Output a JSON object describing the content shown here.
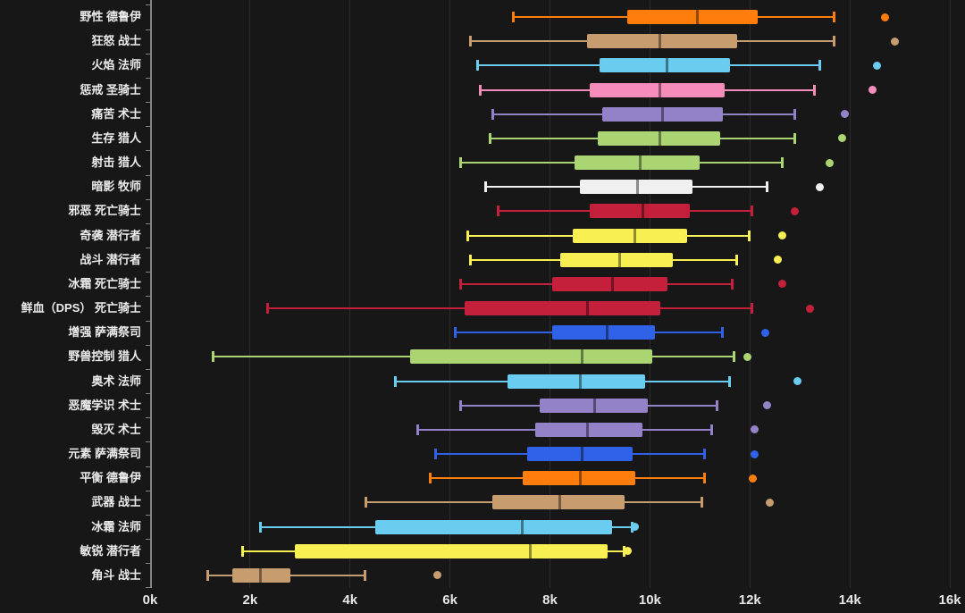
{
  "window": {
    "background": "#171717",
    "grid_color": "#2c2c2c",
    "axis_color": "#848484",
    "text_color": "#ececec"
  },
  "chart_data": {
    "type": "boxplot",
    "orientation": "horizontal",
    "title": "",
    "legend": "none",
    "x_axis": {
      "tick_labels": [
        "0k",
        "2k",
        "4k",
        "6k",
        "8k",
        "10k",
        "12k",
        "14k",
        "16k"
      ],
      "tick_values": [
        0,
        2000,
        4000,
        6000,
        8000,
        10000,
        12000,
        14000,
        16000
      ],
      "min": 0,
      "max": 16000,
      "grid": true
    },
    "y_axis": {
      "categories": [
        "野性 德鲁伊",
        "狂怒 战士",
        "火焰 法师",
        "惩戒 圣骑士",
        "痛苦 术士",
        "生存 猎人",
        "射击 猎人",
        "暗影 牧师",
        "邪恶 死亡骑士",
        "奇袭 潜行者",
        "战斗 潜行者",
        "冰霜 死亡骑士",
        "鲜血（DPS） 死亡骑士",
        "增强 萨满祭司",
        "野兽控制 猎人",
        "奥术 法师",
        "恶魔学识 术士",
        "毁灭 术士",
        "元素 萨满祭司",
        "平衡 德鲁伊",
        "武器 战士",
        "冰霜 法师",
        "敏锐 潜行者",
        "角斗 战士"
      ]
    },
    "class_colors": {
      "druid": "#FF7D0A",
      "warrior": "#C79C6E",
      "mage": "#69CCF0",
      "paladin": "#F58CBA",
      "warlock": "#9482C9",
      "hunter": "#ABD473",
      "priest": "#F0F0F0",
      "death_knight": "#C41F3B",
      "rogue": "#F8EF52",
      "shaman": "#2F62E6"
    },
    "series": [
      {
        "label": "野性 德鲁伊",
        "color": "#FF7D0A",
        "min": 7250,
        "q1": 9550,
        "median": 10950,
        "q3": 12150,
        "max": 13700,
        "outliers": [
          14700
        ]
      },
      {
        "label": "狂怒 战士",
        "color": "#C79C6E",
        "min": 6400,
        "q1": 8750,
        "median": 10200,
        "q3": 11750,
        "max": 13700,
        "outliers": [
          14900
        ]
      },
      {
        "label": "火焰 法师",
        "color": "#69CCF0",
        "min": 6550,
        "q1": 9000,
        "median": 10350,
        "q3": 11600,
        "max": 13400,
        "outliers": [
          14550
        ]
      },
      {
        "label": "惩戒 圣骑士",
        "color": "#F58CBA",
        "min": 6600,
        "q1": 8800,
        "median": 10200,
        "q3": 11500,
        "max": 13300,
        "outliers": [
          14450
        ]
      },
      {
        "label": "痛苦 术士",
        "color": "#9482C9",
        "min": 6850,
        "q1": 9050,
        "median": 10250,
        "q3": 11450,
        "max": 12900,
        "outliers": [
          13900
        ]
      },
      {
        "label": "生存 猎人",
        "color": "#ABD473",
        "min": 6800,
        "q1": 8950,
        "median": 10200,
        "q3": 11400,
        "max": 12900,
        "outliers": [
          13850
        ]
      },
      {
        "label": "射击 猎人",
        "color": "#ABD473",
        "min": 6200,
        "q1": 8500,
        "median": 9800,
        "q3": 11000,
        "max": 12650,
        "outliers": [
          13600
        ]
      },
      {
        "label": "暗影 牧师",
        "color": "#F0F0F0",
        "min": 6700,
        "q1": 8600,
        "median": 9750,
        "q3": 10850,
        "max": 12350,
        "outliers": [
          13400
        ]
      },
      {
        "label": "邪恶 死亡骑士",
        "color": "#C41F3B",
        "min": 6950,
        "q1": 8800,
        "median": 9850,
        "q3": 10800,
        "max": 12050,
        "outliers": [
          12900
        ]
      },
      {
        "label": "奇袭 潜行者",
        "color": "#F8EF52",
        "min": 6350,
        "q1": 8450,
        "median": 9700,
        "q3": 10750,
        "max": 12000,
        "outliers": [
          12650
        ]
      },
      {
        "label": "战斗 潜行者",
        "color": "#F8EF52",
        "min": 6400,
        "q1": 8200,
        "median": 9400,
        "q3": 10450,
        "max": 11750,
        "outliers": [
          12550
        ]
      },
      {
        "label": "冰霜 死亡骑士",
        "color": "#C41F3B",
        "min": 6200,
        "q1": 8050,
        "median": 9250,
        "q3": 10350,
        "max": 11650,
        "outliers": [
          12650
        ]
      },
      {
        "label": "鲜血（DPS） 死亡骑士",
        "color": "#C41F3B",
        "min": 2350,
        "q1": 6300,
        "median": 8750,
        "q3": 10200,
        "max": 12050,
        "outliers": [
          13200
        ]
      },
      {
        "label": "增强 萨满祭司",
        "color": "#2F62E6",
        "min": 6100,
        "q1": 8050,
        "median": 9150,
        "q3": 10100,
        "max": 11450,
        "outliers": [
          12300
        ]
      },
      {
        "label": "野兽控制 猎人",
        "color": "#ABD473",
        "min": 1250,
        "q1": 5200,
        "median": 8650,
        "q3": 10050,
        "max": 11700,
        "outliers": [
          11950
        ]
      },
      {
        "label": "奥术 法师",
        "color": "#69CCF0",
        "min": 4900,
        "q1": 7150,
        "median": 8600,
        "q3": 9900,
        "max": 11600,
        "outliers": [
          12950
        ]
      },
      {
        "label": "恶魔学识 术士",
        "color": "#9482C9",
        "min": 6200,
        "q1": 7800,
        "median": 8900,
        "q3": 9950,
        "max": 11350,
        "outliers": [
          12350
        ]
      },
      {
        "label": "毁灭 术士",
        "color": "#9482C9",
        "min": 5350,
        "q1": 7700,
        "median": 8750,
        "q3": 9850,
        "max": 11250,
        "outliers": [
          12100
        ]
      },
      {
        "label": "元素 萨满祭司",
        "color": "#2F62E6",
        "min": 5700,
        "q1": 7550,
        "median": 8650,
        "q3": 9650,
        "max": 11100,
        "outliers": [
          12100
        ]
      },
      {
        "label": "平衡 德鲁伊",
        "color": "#FF7D0A",
        "min": 5600,
        "q1": 7450,
        "median": 8600,
        "q3": 9700,
        "max": 11100,
        "outliers": [
          12050
        ]
      },
      {
        "label": "武器 战士",
        "color": "#C79C6E",
        "min": 4300,
        "q1": 6850,
        "median": 8200,
        "q3": 9500,
        "max": 11050,
        "outliers": [
          12400
        ]
      },
      {
        "label": "冰霜 法师",
        "color": "#69CCF0",
        "min": 2200,
        "q1": 4500,
        "median": 7450,
        "q3": 9250,
        "max": 9650,
        "outliers": [
          9700
        ]
      },
      {
        "label": "敏锐 潜行者",
        "color": "#F8EF52",
        "min": 1850,
        "q1": 2900,
        "median": 7600,
        "q3": 9150,
        "max": 9500,
        "outliers": [
          9550
        ]
      },
      {
        "label": "角斗 战士",
        "color": "#C79C6E",
        "min": 1150,
        "q1": 1650,
        "median": 2200,
        "q3": 2800,
        "max": 4300,
        "outliers": [
          5750
        ]
      }
    ]
  }
}
